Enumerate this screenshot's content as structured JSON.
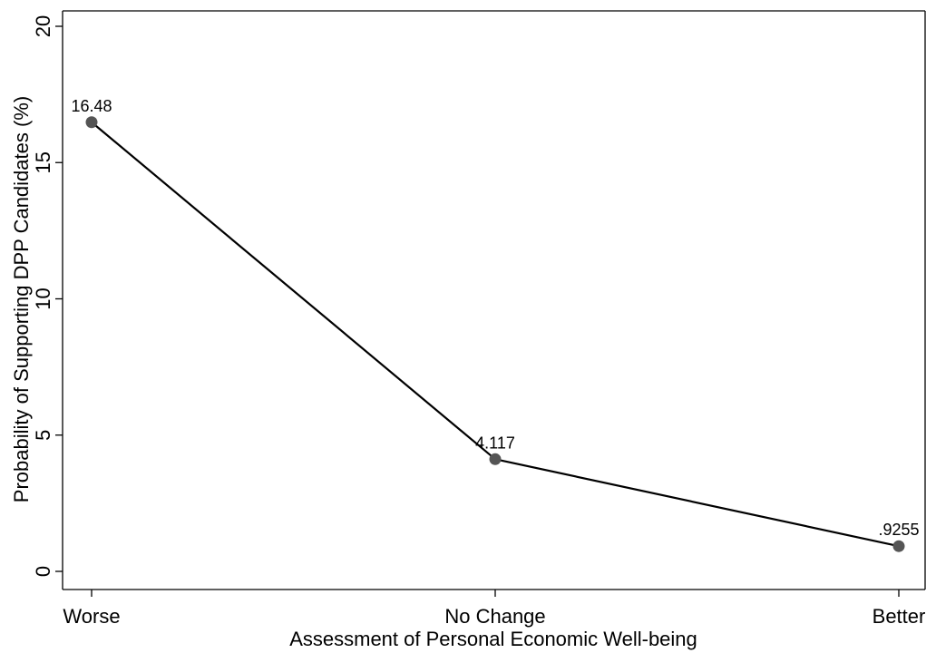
{
  "chart_data": {
    "type": "line",
    "categories": [
      "Worse",
      "No Change",
      "Better"
    ],
    "values": [
      16.48,
      4.117,
      0.9255
    ],
    "data_labels": [
      "16.48",
      "4.117",
      ".9255"
    ],
    "title": "",
    "xlabel": "Assessment of Personal Economic Well-being",
    "ylabel": "Probability of Supporting DPP Candidates (%)",
    "ylim": [
      0,
      20
    ],
    "yticks": [
      0,
      5,
      10,
      15,
      20
    ],
    "grid": false,
    "colors": {
      "line": "#000000",
      "marker": "#555555",
      "axis": "#000000"
    }
  }
}
